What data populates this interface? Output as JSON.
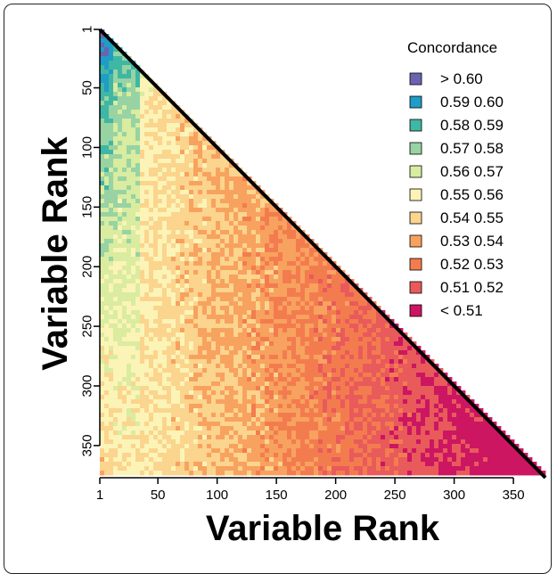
{
  "chart_data": {
    "type": "heatmap",
    "title": "",
    "xlabel": "Variable Rank",
    "ylabel": "Variable Rank",
    "xlim": [
      1,
      377
    ],
    "ylim": [
      1,
      377
    ],
    "x_ticks": [
      1,
      50,
      100,
      150,
      200,
      250,
      300,
      350
    ],
    "y_ticks": [
      1,
      50,
      100,
      150,
      200,
      250,
      300,
      350
    ],
    "shape": "lower-triangle (col rank <= row rank)",
    "legend": {
      "title": "Concordance",
      "position": "top-right",
      "bins": [
        {
          "label": "> 0.60",
          "color": "#6a64b0"
        },
        {
          "label": "0.59  0.60",
          "color": "#1f9dc6"
        },
        {
          "label": "0.58  0.59",
          "color": "#3fb7a4"
        },
        {
          "label": "0.57  0.58",
          "color": "#97d3a3"
        },
        {
          "label": "0.56  0.57",
          "color": "#d9eca0"
        },
        {
          "label": "0.55  0.56",
          "color": "#fbf4b6"
        },
        {
          "label": "0.54  0.55",
          "color": "#fbd48e"
        },
        {
          "label": "0.53  0.54",
          "color": "#f8a25f"
        },
        {
          "label": "0.52  0.53",
          "color": "#f37c4f"
        },
        {
          "label": "0.51  0.52",
          "color": "#e95a5b"
        },
        {
          "label": "< 0.51",
          "color": "#cc1662"
        }
      ]
    },
    "pattern": "Concordance is highest (0.57 to >0.60) for small column ranks near the top-left and decreases with increasing column rank, reaching < 0.51 at the bottom-right corner."
  }
}
